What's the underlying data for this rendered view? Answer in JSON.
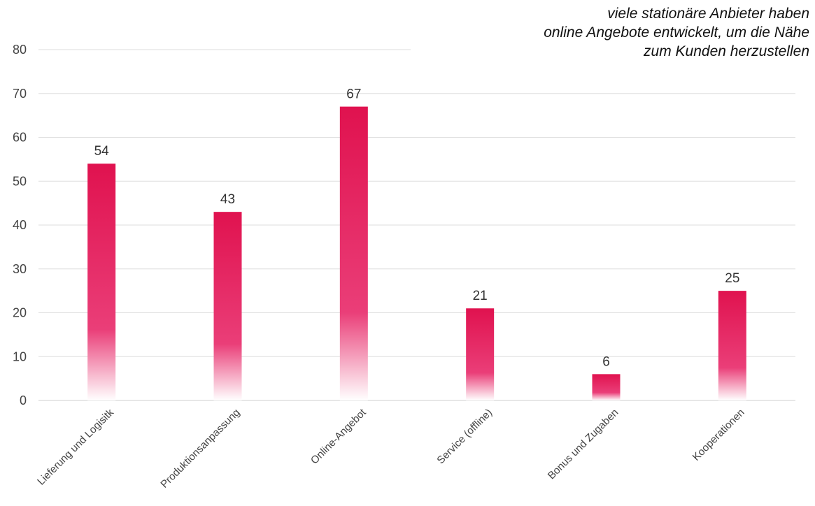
{
  "chart_data": {
    "type": "bar",
    "title": "",
    "xlabel": "",
    "ylabel": "",
    "categories": [
      "Lieferung und Logisitk",
      "Produktionsanpassung",
      "Online-Angebot",
      "Service (offline)",
      "Bonus und Zugaben",
      "Kooperationen"
    ],
    "values": [
      54,
      43,
      67,
      21,
      6,
      25
    ],
    "data_labels": [
      "54",
      "43",
      "67",
      "21",
      "6",
      "25"
    ],
    "ylim": [
      0,
      80
    ],
    "yticks": [
      0,
      10,
      20,
      30,
      40,
      50,
      60,
      70,
      80
    ],
    "grid": true,
    "legend": "none",
    "bar_color_top": "#e0124f",
    "bar_color_mid": "#ea3e78",
    "bar_color_bottom": "#ffffff",
    "annotation": [
      "viele stationäre Anbieter haben",
      "online Angebote entwickelt, um die Nähe",
      "zum Kunden herzustellen"
    ]
  }
}
